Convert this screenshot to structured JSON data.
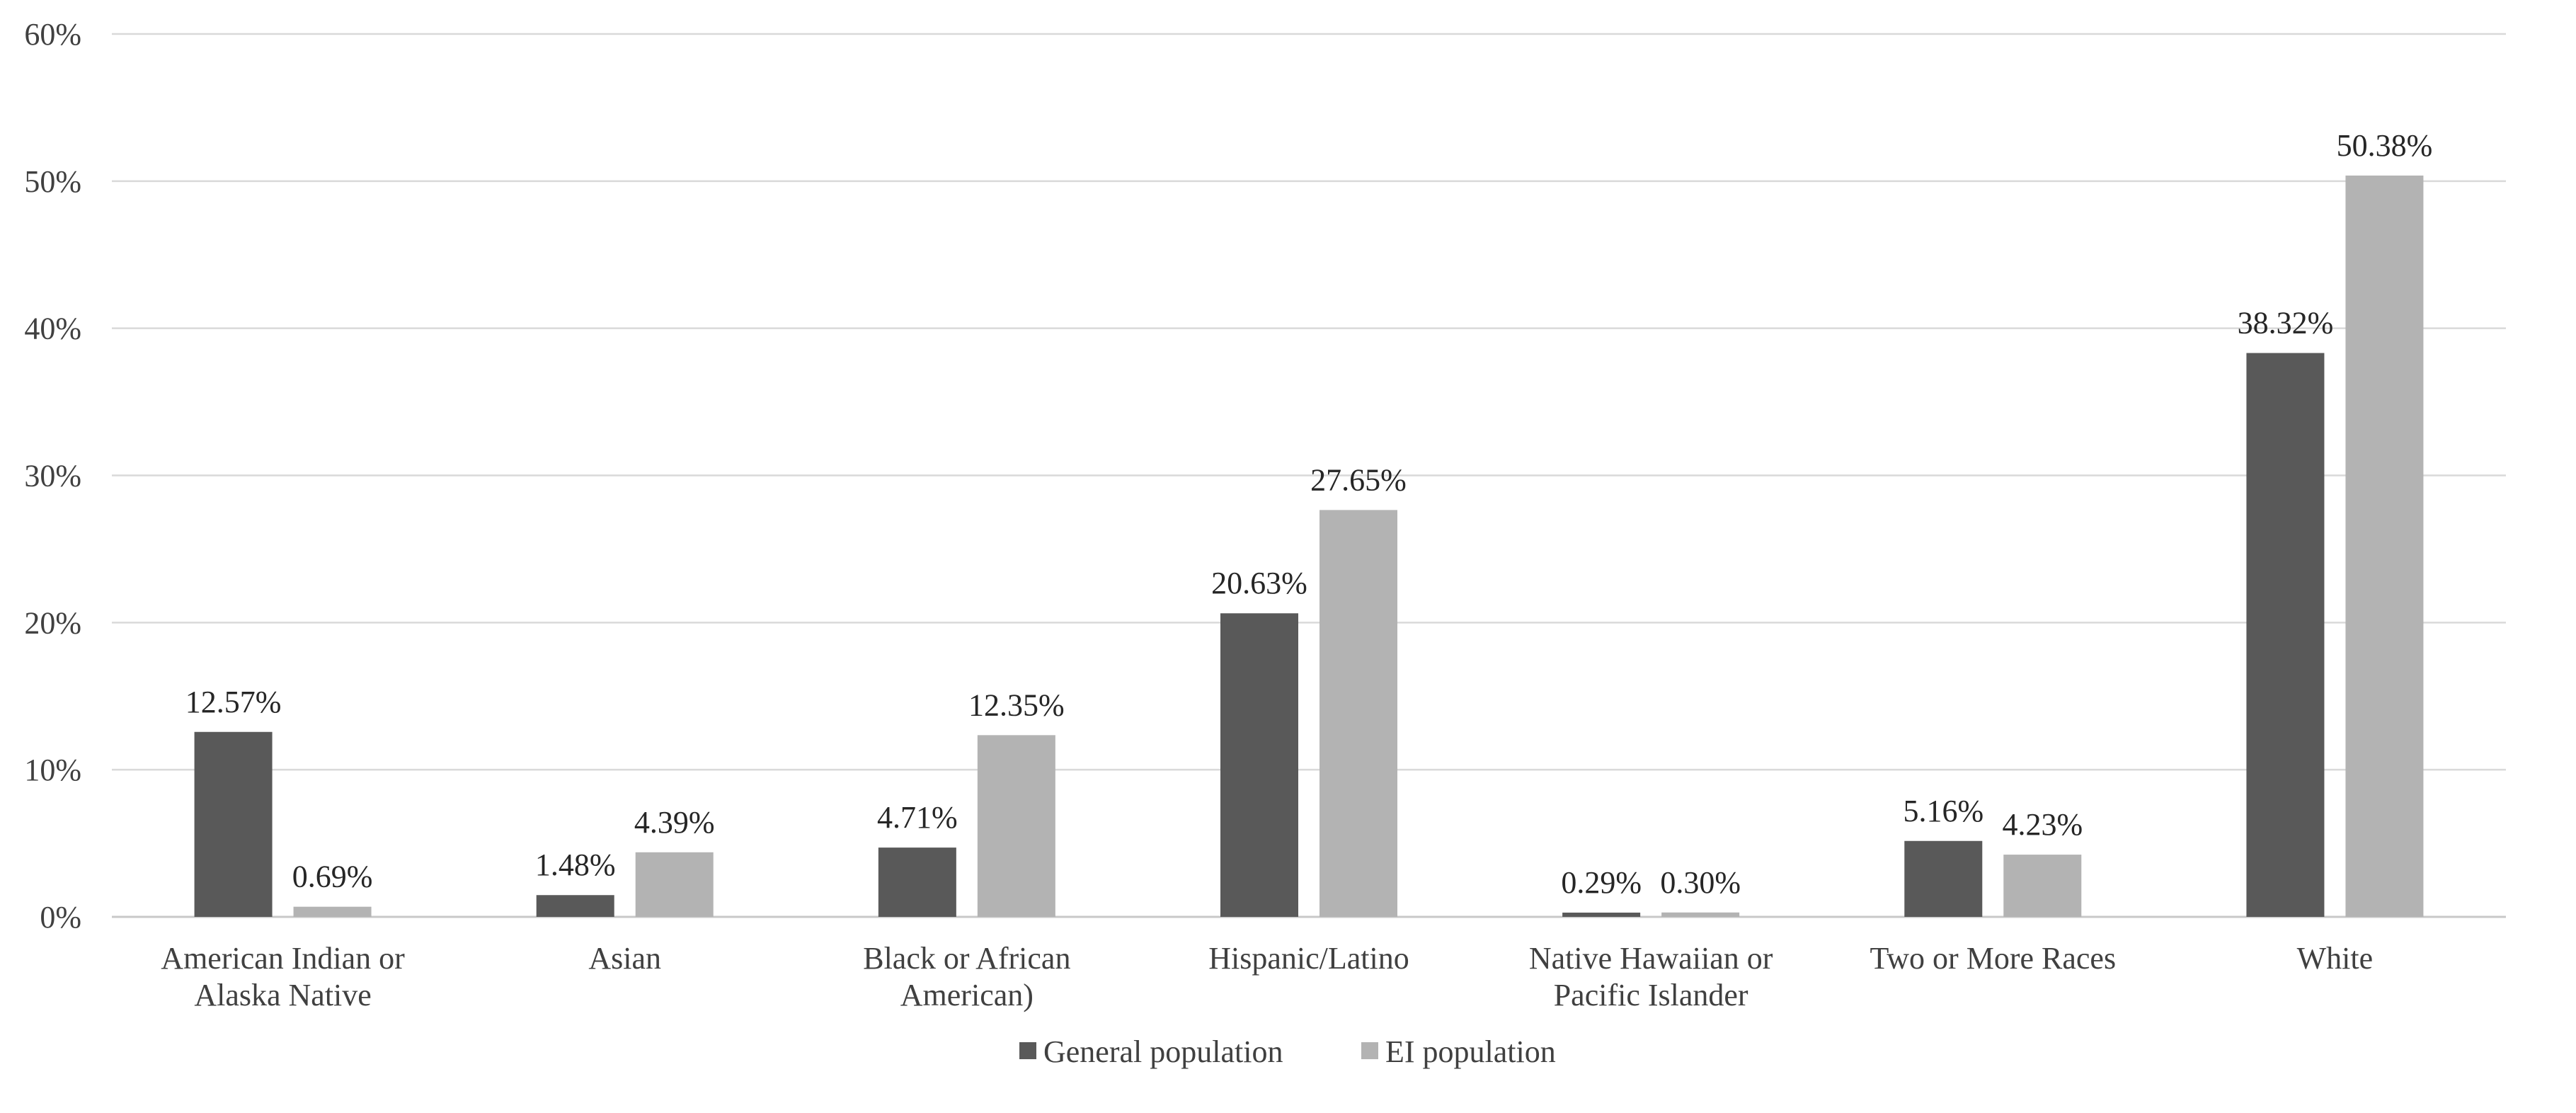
{
  "chart_data": {
    "type": "bar",
    "title": "",
    "xlabel": "",
    "ylabel": "",
    "ylim": [
      0,
      60
    ],
    "yticks": [
      0,
      10,
      20,
      30,
      40,
      50,
      60
    ],
    "ytick_labels": [
      "0%",
      "10%",
      "20%",
      "30%",
      "40%",
      "50%",
      "60%"
    ],
    "grid": true,
    "legend_position": "bottom",
    "categories": [
      [
        "American Indian or",
        "Alaska Native"
      ],
      [
        "Asian"
      ],
      [
        "Black or African",
        "American)"
      ],
      [
        "Hispanic/Latino"
      ],
      [
        "Native Hawaiian or",
        "Pacific Islander"
      ],
      [
        "Two or More Races"
      ],
      [
        "White"
      ]
    ],
    "series": [
      {
        "name": "General population",
        "color": "#595959",
        "values": [
          12.57,
          1.48,
          4.71,
          20.63,
          0.29,
          5.16,
          38.32
        ],
        "labels": [
          "12.57%",
          "1.48%",
          "4.71%",
          "20.63%",
          "0.29%",
          "5.16%",
          "38.32%"
        ]
      },
      {
        "name": "EI population",
        "color": "#b3b3b3",
        "values": [
          0.69,
          4.39,
          12.35,
          27.65,
          0.3,
          4.23,
          50.38
        ],
        "labels": [
          "0.69%",
          "4.39%",
          "12.35%",
          "27.65%",
          "0.30%",
          "4.23%",
          "50.38%"
        ]
      }
    ]
  }
}
